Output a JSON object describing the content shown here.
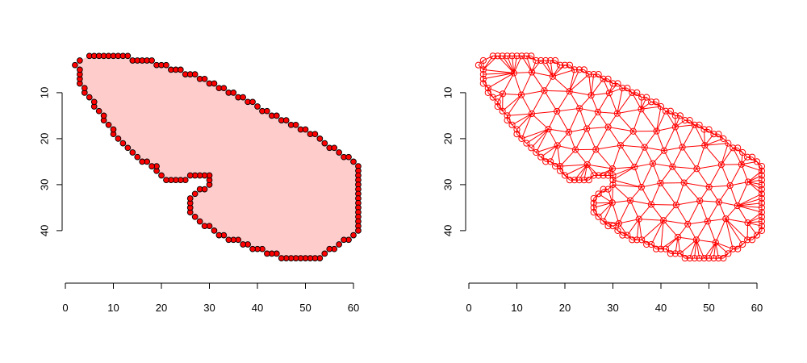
{
  "chart_data": [
    {
      "type": "polygon",
      "xlim": [
        0,
        61
      ],
      "ylim": [
        47,
        3
      ],
      "x_ticks": [
        "0",
        "10",
        "20",
        "30",
        "40",
        "50",
        "60"
      ],
      "y_ticks": [
        "10",
        "20",
        "30",
        "40"
      ],
      "polygon_fill": "#ffcccc",
      "point_color": "#ff0000",
      "point_edge": "#000000",
      "boundary": [
        [
          2,
          4
        ],
        [
          3,
          3
        ],
        [
          5,
          2
        ],
        [
          6,
          2
        ],
        [
          7,
          2
        ],
        [
          8,
          2
        ],
        [
          9,
          2
        ],
        [
          10,
          2
        ],
        [
          11,
          2
        ],
        [
          12,
          2
        ],
        [
          13,
          2
        ],
        [
          14,
          3
        ],
        [
          15,
          3
        ],
        [
          16,
          3
        ],
        [
          17,
          3
        ],
        [
          18,
          3
        ],
        [
          19,
          4
        ],
        [
          20,
          4
        ],
        [
          21,
          4
        ],
        [
          22,
          5
        ],
        [
          23,
          5
        ],
        [
          24,
          5
        ],
        [
          25,
          6
        ],
        [
          26,
          6
        ],
        [
          27,
          6
        ],
        [
          28,
          7
        ],
        [
          29,
          7
        ],
        [
          30,
          8
        ],
        [
          31,
          8
        ],
        [
          32,
          9
        ],
        [
          33,
          9
        ],
        [
          34,
          10
        ],
        [
          35,
          10
        ],
        [
          36,
          11
        ],
        [
          37,
          11
        ],
        [
          38,
          12
        ],
        [
          39,
          12
        ],
        [
          40,
          13
        ],
        [
          41,
          14
        ],
        [
          42,
          14
        ],
        [
          43,
          15
        ],
        [
          44,
          15
        ],
        [
          45,
          16
        ],
        [
          46,
          16
        ],
        [
          47,
          17
        ],
        [
          48,
          17
        ],
        [
          49,
          18
        ],
        [
          50,
          18
        ],
        [
          51,
          19
        ],
        [
          52,
          19
        ],
        [
          53,
          20
        ],
        [
          54,
          21
        ],
        [
          55,
          22
        ],
        [
          56,
          22
        ],
        [
          57,
          23
        ],
        [
          58,
          24
        ],
        [
          59,
          24
        ],
        [
          60,
          25
        ],
        [
          61,
          26
        ],
        [
          61,
          27
        ],
        [
          61,
          28
        ],
        [
          61,
          29
        ],
        [
          61,
          30
        ],
        [
          61,
          31
        ],
        [
          61,
          32
        ],
        [
          61,
          33
        ],
        [
          61,
          34
        ],
        [
          61,
          35
        ],
        [
          61,
          36
        ],
        [
          61,
          37
        ],
        [
          61,
          38
        ],
        [
          61,
          39
        ],
        [
          61,
          40
        ],
        [
          60,
          41
        ],
        [
          59,
          42
        ],
        [
          58,
          42
        ],
        [
          57,
          43
        ],
        [
          56,
          44
        ],
        [
          55,
          44
        ],
        [
          54,
          45
        ],
        [
          53,
          46
        ],
        [
          52,
          46
        ],
        [
          51,
          46
        ],
        [
          50,
          46
        ],
        [
          49,
          46
        ],
        [
          48,
          46
        ],
        [
          47,
          46
        ],
        [
          46,
          46
        ],
        [
          45,
          46
        ],
        [
          44,
          45
        ],
        [
          43,
          45
        ],
        [
          42,
          45
        ],
        [
          41,
          44
        ],
        [
          40,
          44
        ],
        [
          39,
          44
        ],
        [
          38,
          43
        ],
        [
          37,
          43
        ],
        [
          36,
          42
        ],
        [
          35,
          42
        ],
        [
          34,
          42
        ],
        [
          33,
          41
        ],
        [
          32,
          41
        ],
        [
          31,
          40
        ],
        [
          30,
          39
        ],
        [
          29,
          39
        ],
        [
          28,
          38
        ],
        [
          27,
          37
        ],
        [
          26,
          36
        ],
        [
          26,
          35
        ],
        [
          26,
          34
        ],
        [
          26,
          33
        ],
        [
          27,
          32
        ],
        [
          28,
          31
        ],
        [
          29,
          31
        ],
        [
          30,
          30
        ],
        [
          30,
          29
        ],
        [
          30,
          28
        ],
        [
          29,
          28
        ],
        [
          28,
          28
        ],
        [
          27,
          28
        ],
        [
          26,
          28
        ],
        [
          25,
          29
        ],
        [
          24,
          29
        ],
        [
          23,
          29
        ],
        [
          22,
          29
        ],
        [
          21,
          29
        ],
        [
          20,
          28
        ],
        [
          19,
          27
        ],
        [
          19,
          26
        ],
        [
          18,
          26
        ],
        [
          17,
          25
        ],
        [
          16,
          25
        ],
        [
          15,
          24
        ],
        [
          14,
          23
        ],
        [
          13,
          22
        ],
        [
          12,
          21
        ],
        [
          11,
          20
        ],
        [
          10,
          19
        ],
        [
          10,
          18
        ],
        [
          9,
          17
        ],
        [
          8,
          16
        ],
        [
          8,
          15
        ],
        [
          7,
          14
        ],
        [
          6,
          13
        ],
        [
          6,
          12
        ],
        [
          5,
          11
        ],
        [
          4,
          10
        ],
        [
          4,
          9
        ],
        [
          3,
          8
        ],
        [
          3,
          7
        ],
        [
          3,
          6
        ],
        [
          3,
          5
        ]
      ]
    },
    {
      "type": "triangulation",
      "xlim": [
        0,
        61
      ],
      "ylim": [
        47,
        3
      ],
      "x_ticks": [
        "0",
        "10",
        "20",
        "30",
        "40",
        "50",
        "60"
      ],
      "y_ticks": [
        "10",
        "20",
        "30",
        "40"
      ],
      "line_color": "#ff0000",
      "point_style": "open-circle"
    }
  ]
}
